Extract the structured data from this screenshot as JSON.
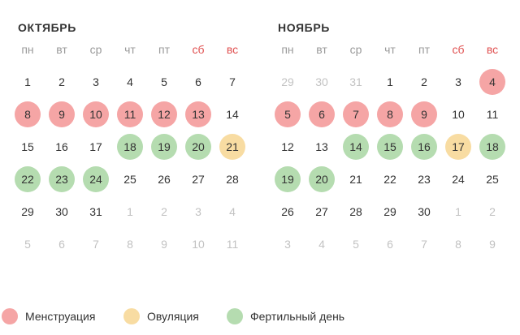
{
  "colors": {
    "menstruation": "#f5a5a5",
    "ovulation": "#f8dca2",
    "fertile": "#b5dcb0",
    "weekend_header": "#e05050",
    "other_month_day": "#c2c2c2"
  },
  "weekdays": [
    {
      "label": "пн",
      "weekend": false
    },
    {
      "label": "вт",
      "weekend": false
    },
    {
      "label": "ср",
      "weekend": false
    },
    {
      "label": "чт",
      "weekend": false
    },
    {
      "label": "пт",
      "weekend": false
    },
    {
      "label": "сб",
      "weekend": true
    },
    {
      "label": "вс",
      "weekend": true
    }
  ],
  "months": [
    {
      "title": "ОКТЯБРЬ",
      "weeks": [
        [
          {
            "d": "1"
          },
          {
            "d": "2"
          },
          {
            "d": "3"
          },
          {
            "d": "4"
          },
          {
            "d": "5"
          },
          {
            "d": "6"
          },
          {
            "d": "7"
          }
        ],
        [
          {
            "d": "8",
            "m": "men"
          },
          {
            "d": "9",
            "m": "men"
          },
          {
            "d": "10",
            "m": "men"
          },
          {
            "d": "11",
            "m": "men"
          },
          {
            "d": "12",
            "m": "men"
          },
          {
            "d": "13",
            "m": "men"
          },
          {
            "d": "14"
          }
        ],
        [
          {
            "d": "15"
          },
          {
            "d": "16"
          },
          {
            "d": "17"
          },
          {
            "d": "18",
            "m": "fer"
          },
          {
            "d": "19",
            "m": "fer"
          },
          {
            "d": "20",
            "m": "fer"
          },
          {
            "d": "21",
            "m": "ovu"
          }
        ],
        [
          {
            "d": "22",
            "m": "fer"
          },
          {
            "d": "23",
            "m": "fer"
          },
          {
            "d": "24",
            "m": "fer"
          },
          {
            "d": "25"
          },
          {
            "d": "26"
          },
          {
            "d": "27"
          },
          {
            "d": "28"
          }
        ],
        [
          {
            "d": "29"
          },
          {
            "d": "30"
          },
          {
            "d": "31"
          },
          {
            "d": "1",
            "o": true
          },
          {
            "d": "2",
            "o": true
          },
          {
            "d": "3",
            "o": true
          },
          {
            "d": "4",
            "o": true
          }
        ],
        [
          {
            "d": "5",
            "o": true
          },
          {
            "d": "6",
            "o": true
          },
          {
            "d": "7",
            "o": true
          },
          {
            "d": "8",
            "o": true
          },
          {
            "d": "9",
            "o": true
          },
          {
            "d": "10",
            "o": true
          },
          {
            "d": "11",
            "o": true
          }
        ]
      ]
    },
    {
      "title": "НОЯБРЬ",
      "weeks": [
        [
          {
            "d": "29",
            "o": true
          },
          {
            "d": "30",
            "o": true
          },
          {
            "d": "31",
            "o": true
          },
          {
            "d": "1"
          },
          {
            "d": "2"
          },
          {
            "d": "3"
          },
          {
            "d": "4",
            "m": "men"
          }
        ],
        [
          {
            "d": "5",
            "m": "men"
          },
          {
            "d": "6",
            "m": "men"
          },
          {
            "d": "7",
            "m": "men"
          },
          {
            "d": "8",
            "m": "men"
          },
          {
            "d": "9",
            "m": "men"
          },
          {
            "d": "10"
          },
          {
            "d": "11"
          }
        ],
        [
          {
            "d": "12"
          },
          {
            "d": "13"
          },
          {
            "d": "14",
            "m": "fer"
          },
          {
            "d": "15",
            "m": "fer"
          },
          {
            "d": "16",
            "m": "fer"
          },
          {
            "d": "17",
            "m": "ovu"
          },
          {
            "d": "18",
            "m": "fer"
          }
        ],
        [
          {
            "d": "19",
            "m": "fer"
          },
          {
            "d": "20",
            "m": "fer"
          },
          {
            "d": "21"
          },
          {
            "d": "22"
          },
          {
            "d": "23"
          },
          {
            "d": "24"
          },
          {
            "d": "25"
          }
        ],
        [
          {
            "d": "26"
          },
          {
            "d": "27"
          },
          {
            "d": "28"
          },
          {
            "d": "29"
          },
          {
            "d": "30"
          },
          {
            "d": "1",
            "o": true
          },
          {
            "d": "2",
            "o": true
          }
        ],
        [
          {
            "d": "3",
            "o": true
          },
          {
            "d": "4",
            "o": true
          },
          {
            "d": "5",
            "o": true
          },
          {
            "d": "6",
            "o": true
          },
          {
            "d": "7",
            "o": true
          },
          {
            "d": "8",
            "o": true
          },
          {
            "d": "9",
            "o": true
          }
        ]
      ]
    }
  ],
  "legend": [
    {
      "key": "men",
      "label": "Менструация"
    },
    {
      "key": "ovu",
      "label": "Овуляция"
    },
    {
      "key": "fer",
      "label": "Фертильный день"
    }
  ]
}
